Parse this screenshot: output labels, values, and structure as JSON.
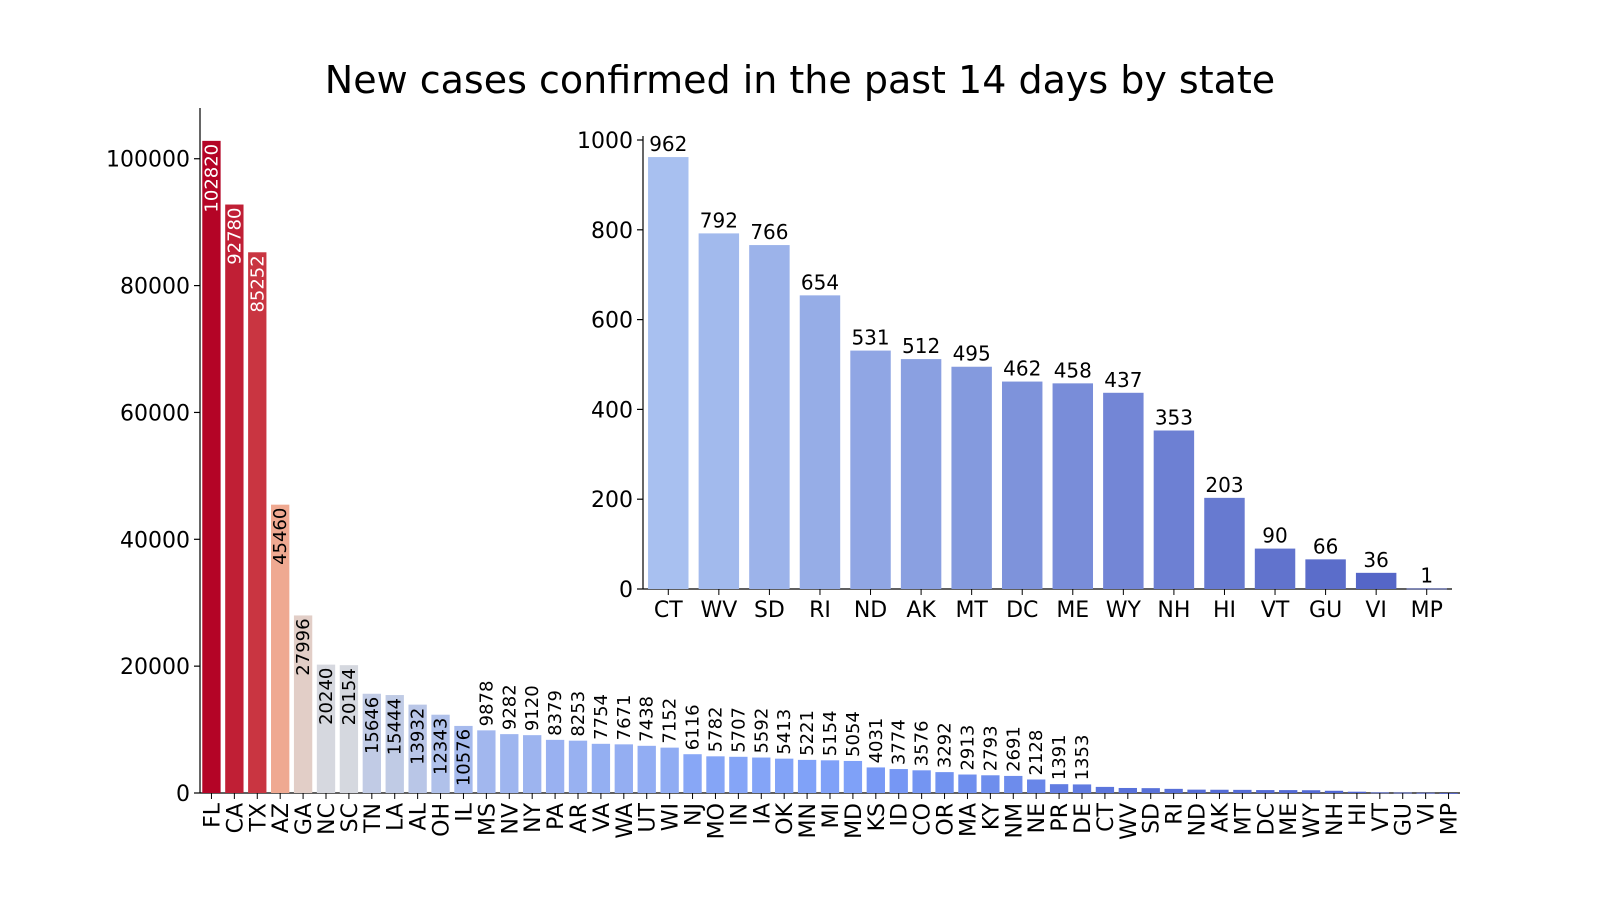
{
  "chart_data": [
    {
      "type": "bar",
      "title": "New cases confirmed in the past 14 days by state",
      "xlabel": "",
      "ylabel": "",
      "ylim": [
        0,
        108000
      ],
      "yticks": [
        "0",
        "20000",
        "40000",
        "60000",
        "80000",
        "100000"
      ],
      "categories": [
        "FL",
        "CA",
        "TX",
        "AZ",
        "GA",
        "NC",
        "SC",
        "TN",
        "LA",
        "AL",
        "OH",
        "IL",
        "MS",
        "NV",
        "NY",
        "PA",
        "AR",
        "VA",
        "WA",
        "UT",
        "WI",
        "NJ",
        "MO",
        "IN",
        "IA",
        "OK",
        "MN",
        "MI",
        "MD",
        "KS",
        "ID",
        "CO",
        "OR",
        "MA",
        "KY",
        "NM",
        "NE",
        "PR",
        "DE",
        "CT",
        "WV",
        "SD",
        "RI",
        "ND",
        "AK",
        "MT",
        "DC",
        "ME",
        "WY",
        "NH",
        "HI",
        "VT",
        "GU",
        "VI",
        "MP"
      ],
      "values": [
        102820,
        92780,
        85252,
        45460,
        27996,
        20240,
        20154,
        15646,
        15444,
        13932,
        12343,
        10576,
        9878,
        9282,
        9120,
        8379,
        8253,
        7754,
        7671,
        7438,
        7152,
        6116,
        5782,
        5707,
        5592,
        5413,
        5221,
        5154,
        5054,
        4031,
        3774,
        3576,
        3292,
        2913,
        2793,
        2691,
        2128,
        1391,
        1353,
        962,
        792,
        766,
        654,
        531,
        512,
        495,
        462,
        458,
        437,
        353,
        203,
        90,
        66,
        36,
        1
      ],
      "labeled_count": 39,
      "palette": "coolwarm (red to blue)"
    },
    {
      "type": "bar",
      "title": "",
      "xlabel": "",
      "ylabel": "",
      "ylim": [
        0,
        1000
      ],
      "yticks": [
        "0",
        "200",
        "400",
        "600",
        "800",
        "1000"
      ],
      "categories": [
        "CT",
        "WV",
        "SD",
        "RI",
        "ND",
        "AK",
        "MT",
        "DC",
        "ME",
        "WY",
        "NH",
        "HI",
        "VT",
        "GU",
        "VI",
        "MP"
      ],
      "values": [
        962,
        792,
        766,
        654,
        531,
        512,
        495,
        462,
        458,
        437,
        353,
        203,
        90,
        66,
        36,
        1
      ],
      "palette": "blue gradient"
    }
  ]
}
